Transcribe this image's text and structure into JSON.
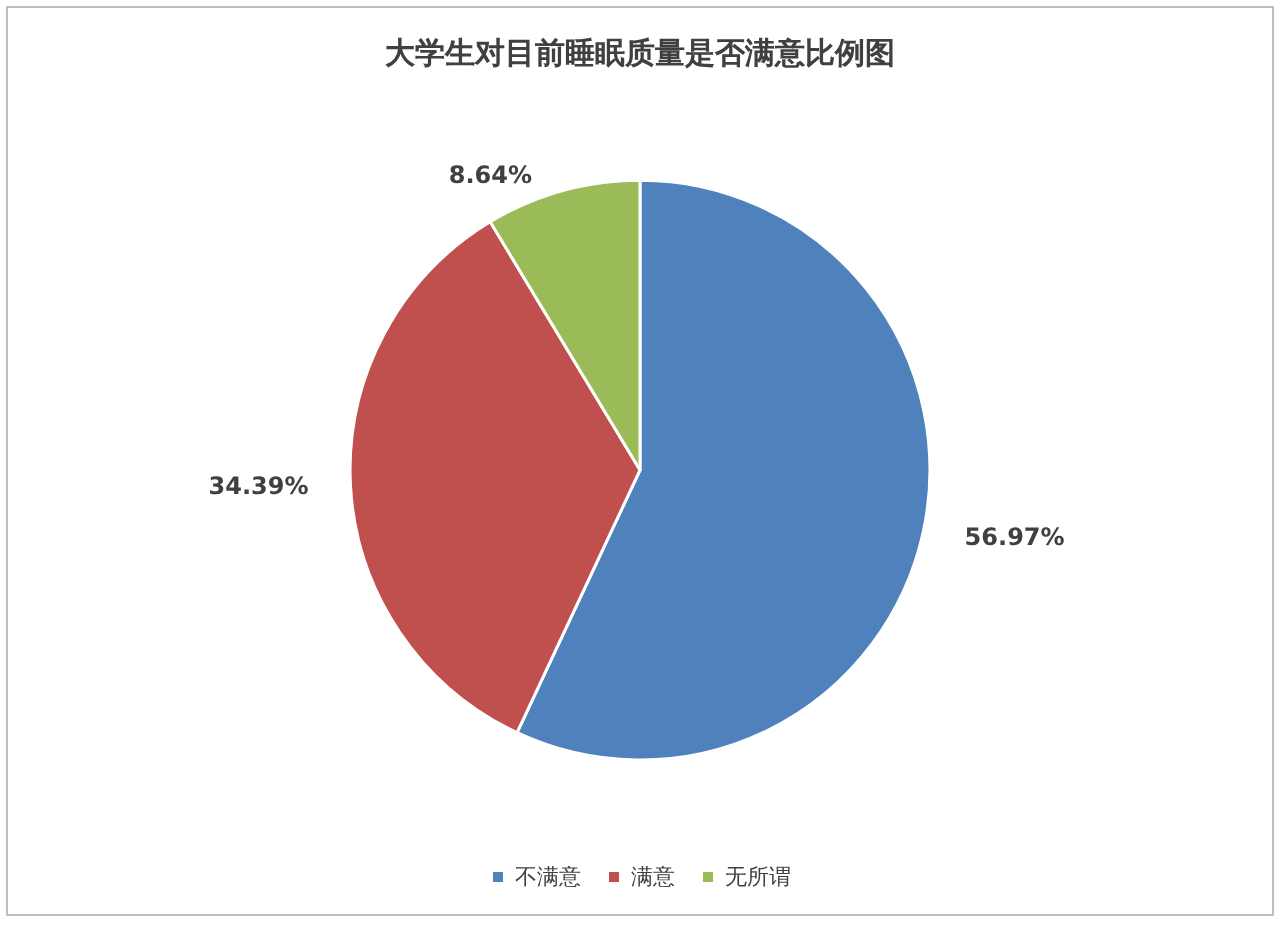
{
  "chart_data": {
    "type": "pie",
    "title": "大学生对目前睡眠质量是否满意比例图",
    "categories": [
      "不满意",
      "满意",
      "无所谓"
    ],
    "values": [
      56.97,
      34.39,
      8.64
    ],
    "colors": [
      "#4f81bd",
      "#c0504d",
      "#9bbb59"
    ],
    "value_labels": [
      "56.97%",
      "34.39%",
      "8.64%"
    ],
    "legend": "bottom"
  }
}
